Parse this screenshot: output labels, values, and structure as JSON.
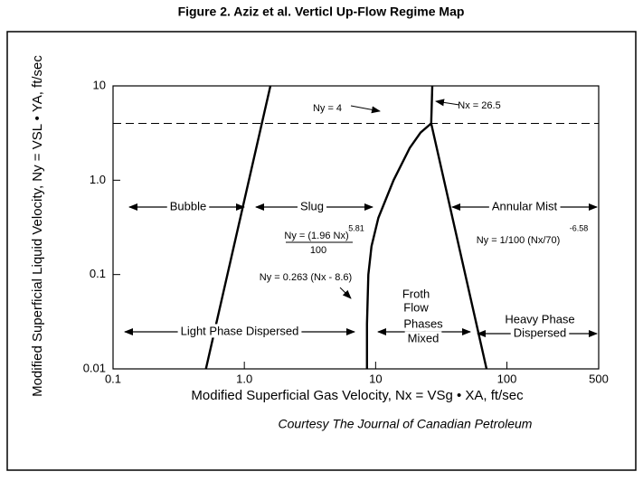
{
  "chart_data": {
    "type": "line",
    "title": "Figure 2. Aziz et al. Verticl Up-Flow Regime Map",
    "xlabel": "Modified Superficial Gas Velocity, Nx = VSg • XA, ft/sec",
    "ylabel": "Modified Superficial Liquid Velocity, Ny = VSL • YA, ft/sec",
    "source": "Courtesy The Journal of Canadian Petroleum",
    "xscale": "log",
    "yscale": "log",
    "xlim": [
      0.1,
      500
    ],
    "ylim": [
      0.01,
      10
    ],
    "xticks": [
      0.1,
      {
        "value": 1,
        "label": "1.0"
      },
      10,
      100,
      500
    ],
    "yticks": [
      0.01,
      0.1,
      {
        "value": 1,
        "label": "1.0"
      },
      10
    ],
    "series": [
      {
        "x": [
          0.51,
          1.58
        ],
        "values": [
          0.01,
          10
        ],
        "color": "#000000"
      },
      {
        "x": [
          8.6,
          8.6,
          8.8,
          9.3,
          10.5,
          13.7,
          18.2,
          22,
          26.5
        ],
        "values": [
          0.01,
          0.03,
          0.1,
          0.2,
          0.4,
          1.0,
          2.2,
          3.2,
          4
        ],
        "color": "#000000"
      },
      {
        "x": [
          26.5,
          27
        ],
        "values": [
          4,
          10
        ],
        "color": "#000000"
      },
      {
        "x": [
          26.5,
          70
        ],
        "values": [
          4,
          0.01
        ],
        "color": "#000000"
      },
      {
        "x": [
          0.1,
          500
        ],
        "values": [
          4,
          4
        ],
        "color": "#000000",
        "dash": true
      }
    ],
    "annotations": [
      "Bubble",
      "Slug",
      "Annular Mist",
      "Light Phase Dispersed",
      "Froth",
      "Flow",
      "Phases",
      "Mixed",
      "Heavy Phase",
      "Dispersed",
      "Ny = 4",
      "Nx = 26.5",
      "Ny = (1.96 Nx)",
      "5.81",
      "100",
      "Ny = 0.263 (Nx - 8.6)",
      "Ny = 1/100 (Nx/70)",
      "-6.58"
    ]
  }
}
